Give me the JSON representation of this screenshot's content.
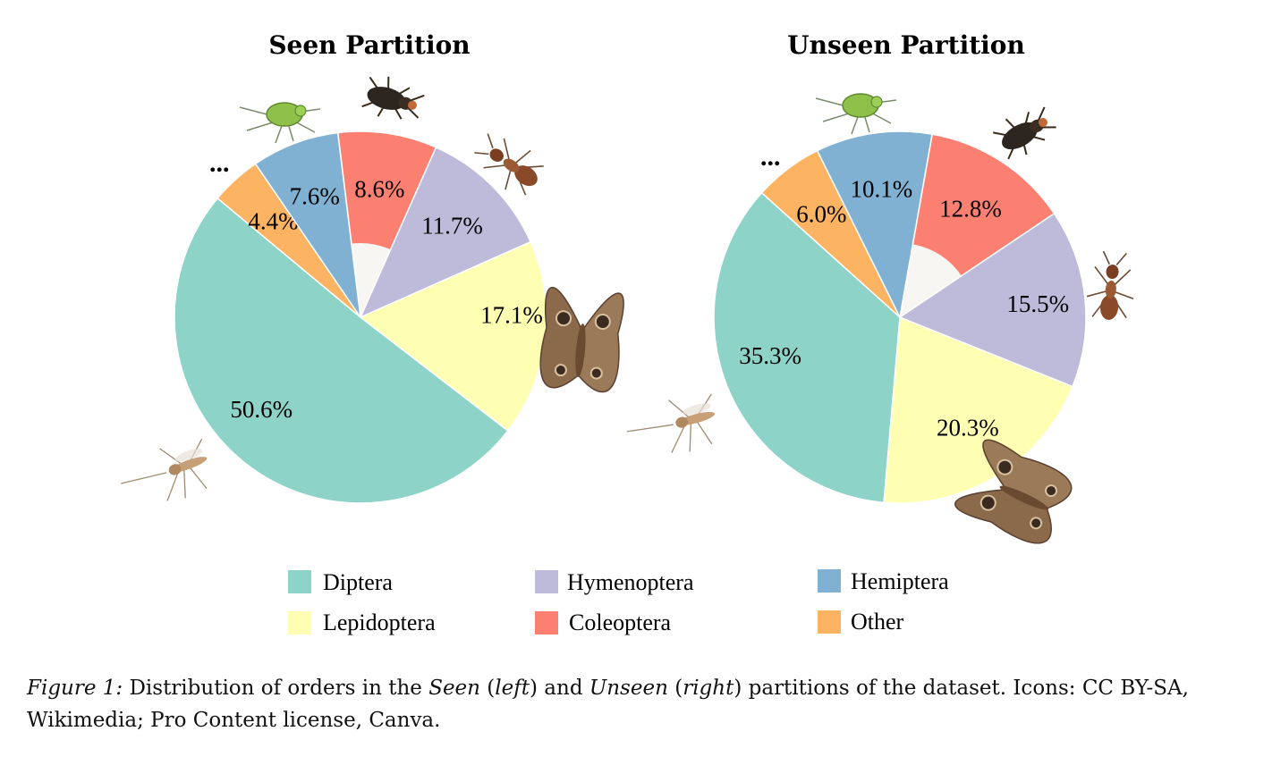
{
  "chart_data": [
    {
      "type": "pie",
      "title": "Seen Partition",
      "categories": [
        "Diptera",
        "Lepidoptera",
        "Hymenoptera",
        "Coleoptera",
        "Hemiptera",
        "Other"
      ],
      "values": [
        50.6,
        17.1,
        11.7,
        8.6,
        7.6,
        4.4
      ],
      "labels": [
        "50.6%",
        "17.1%",
        "11.7%",
        "8.6%",
        "7.6%",
        "4.4%"
      ],
      "donut": true,
      "annotation": "..."
    },
    {
      "type": "pie",
      "title": "Unseen Partition",
      "categories": [
        "Diptera",
        "Lepidoptera",
        "Hymenoptera",
        "Coleoptera",
        "Hemiptera",
        "Other"
      ],
      "values": [
        35.3,
        20.3,
        15.5,
        12.8,
        10.1,
        6.0
      ],
      "labels": [
        "35.3%",
        "20.3%",
        "15.5%",
        "12.8%",
        "10.1%",
        "6.0%"
      ],
      "donut": true,
      "annotation": "..."
    }
  ],
  "legend": [
    {
      "label": "Diptera",
      "color": "#8dd3c7"
    },
    {
      "label": "Hymenoptera",
      "color": "#bebada"
    },
    {
      "label": "Hemiptera",
      "color": "#80b1d3"
    },
    {
      "label": "Lepidoptera",
      "color": "#ffffb3"
    },
    {
      "label": "Coleoptera",
      "color": "#fb8072"
    },
    {
      "label": "Other",
      "color": "#fdb462"
    }
  ],
  "colors": {
    "Diptera": "#8dd3c7",
    "Lepidoptera": "#ffffb3",
    "Hymenoptera": "#bebada",
    "Coleoptera": "#fb8072",
    "Hemiptera": "#80b1d3",
    "Other": "#fdb462",
    "hole": "#f7f6f2"
  },
  "icons": [
    "aphid-icon",
    "beetle-icon",
    "ant-icon",
    "moth-icon",
    "mosquito-icon"
  ],
  "caption": {
    "prefix": "Figure 1:",
    "t1": " Distribution of orders in the ",
    "seen": "Seen",
    "t2": " (",
    "left": "left",
    "t3": ") and ",
    "unseen": "Unseen",
    "t4": " (",
    "right": "right",
    "t5": ") partitions of the dataset. Icons: CC BY-SA, Wikimedia; Pro Content license, Canva."
  }
}
